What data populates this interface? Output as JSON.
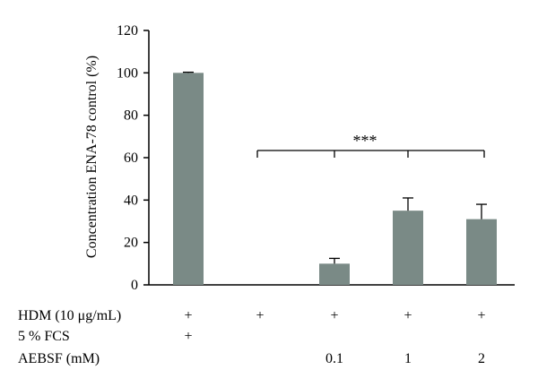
{
  "chart_data": {
    "type": "bar",
    "ylabel": "Concentration ENA-78 control (%)",
    "ylim": [
      0,
      120
    ],
    "yticks": [
      0,
      20,
      40,
      60,
      80,
      100,
      120
    ],
    "values": [
      100,
      0,
      10,
      35,
      31
    ],
    "errors": [
      0.3,
      0,
      2.5,
      6,
      7
    ],
    "bar_color": "#7a8a86",
    "significance": {
      "label": "***",
      "from_bar": 1,
      "to_bar": 4
    },
    "conditions": [
      {
        "label": "HDM (10 μg/mL)",
        "marks": [
          "+",
          "+",
          "+",
          "+",
          "+"
        ]
      },
      {
        "label": "5 % FCS",
        "marks": [
          "+",
          "",
          "",
          "",
          ""
        ]
      },
      {
        "label": "AEBSF (mM)",
        "marks": [
          "",
          "",
          "0.1",
          "1",
          "2"
        ]
      }
    ]
  }
}
